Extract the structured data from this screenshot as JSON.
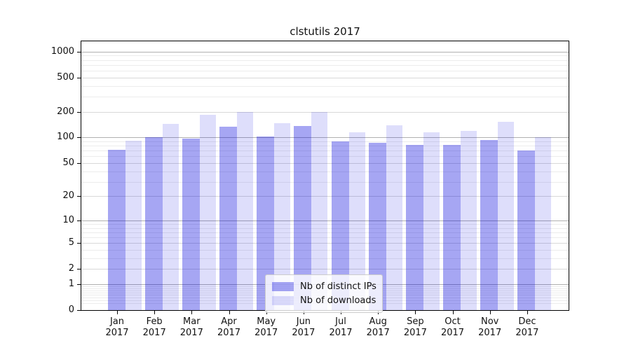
{
  "chart_data": {
    "type": "bar",
    "title": "clstutils 2017",
    "yscale": "log1p",
    "ylim": [
      0,
      1320
    ],
    "grid": true,
    "legend_position": "lower center inside",
    "year": "2017",
    "months": [
      "Jan",
      "Feb",
      "Mar",
      "Apr",
      "May",
      "Jun",
      "Jul",
      "Aug",
      "Sep",
      "Oct",
      "Nov",
      "Dec"
    ],
    "yticks": [
      0,
      1,
      2,
      5,
      10,
      20,
      50,
      100,
      200,
      500,
      1000
    ],
    "series": [
      {
        "name": "Nb of distinct IPs",
        "color": "rgba(0,0,221,0.35)",
        "values": [
          72,
          100,
          97,
          133,
          102,
          136,
          90,
          86,
          82,
          82,
          93,
          70
        ]
      },
      {
        "name": "Nb of downloads",
        "color": "rgba(0,0,221,0.13)",
        "values": [
          92,
          145,
          185,
          200,
          148,
          200,
          114,
          140,
          115,
          120,
          152,
          100
        ]
      }
    ]
  },
  "colors": {
    "bar_dark": "#a7a7f0",
    "bar_light": "#dcdcf8",
    "grid_decade": "#b0b0b0",
    "grid_labeled": "#d8d8d8",
    "grid_minor": "#ececec",
    "spine": "#000000"
  }
}
